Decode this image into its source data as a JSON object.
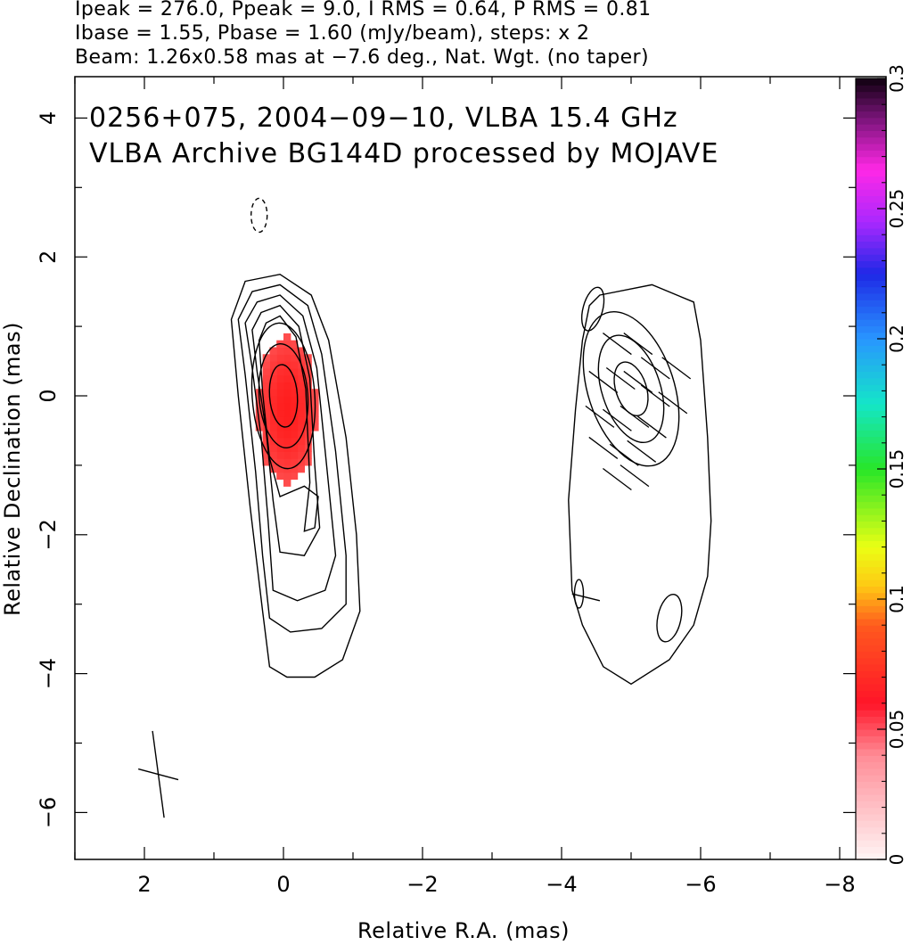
{
  "header": {
    "line1": "Ipeak = 276.0, Ppeak = 9.0, I RMS = 0.64, P RMS = 0.81",
    "line2": "Ibase = 1.55, Pbase = 1.60 (mJy/beam), steps: x 2",
    "line3": "Beam: 1.26x0.58 mas at −7.6 deg., Nat. Wgt. (no taper)"
  },
  "annotation": {
    "line1": "0256+075, 2004−09−10, VLBA 15.4 GHz",
    "line2": "VLBA Archive BG144D processed by MOJAVE"
  },
  "chart_data": {
    "type": "heatmap",
    "title": "",
    "xlabel": "Relative R.A. (mas)",
    "ylabel": "Relative Declination (mas)",
    "xlim": [
      3.0,
      -8.3
    ],
    "ylim": [
      -6.7,
      4.6
    ],
    "x_ticks": [
      2,
      0,
      -2,
      -4,
      -6,
      -8
    ],
    "x_tick_labels": [
      "2",
      "0",
      "−2",
      "−4",
      "−6",
      "−8"
    ],
    "y_ticks": [
      4,
      2,
      0,
      -2,
      -4,
      -6
    ],
    "y_tick_labels": [
      "4",
      "2",
      "0",
      "−2",
      "−4",
      "−6"
    ],
    "colorbar": {
      "range": [
        0,
        0.3
      ],
      "ticks": [
        0,
        0.05,
        0.1,
        0.15,
        0.2,
        0.25,
        0.3
      ],
      "tick_labels": [
        "0",
        "0.05",
        "0.1",
        "0.15",
        "0.2",
        "0.25",
        "0.3"
      ]
    },
    "polarization_patch": {
      "center": [
        -0.05,
        -0.2
      ],
      "ra_range": [
        -0.45,
        0.45
      ],
      "dec_range": [
        -1.25,
        0.95
      ],
      "value_range_approx": [
        0.04,
        0.06
      ]
    },
    "core_component": {
      "center": [
        0.0,
        0.0
      ],
      "contours": [
        {
          "level": 1,
          "rx": 0.2,
          "ry": 0.45
        },
        {
          "level": 2,
          "rx": 0.35,
          "ry": 0.75
        },
        {
          "level": 3,
          "rx": 0.45,
          "ry": 1.05
        }
      ]
    },
    "jet_component": {
      "center": [
        -5.0,
        0.1
      ],
      "contours": [
        {
          "level": 1,
          "rx": 0.22,
          "ry": 0.4
        },
        {
          "level": 2,
          "rx": 0.42,
          "ry": 0.8
        },
        {
          "level": 3,
          "rx": 0.62,
          "ry": 1.15
        }
      ]
    },
    "negative_contour": {
      "ra": 0.35,
      "dec": 2.6
    },
    "beam": {
      "ra": 1.8,
      "dec": -5.45,
      "major_mas": 1.26,
      "minor_mas": 0.58,
      "pa_deg": -7.6
    }
  }
}
